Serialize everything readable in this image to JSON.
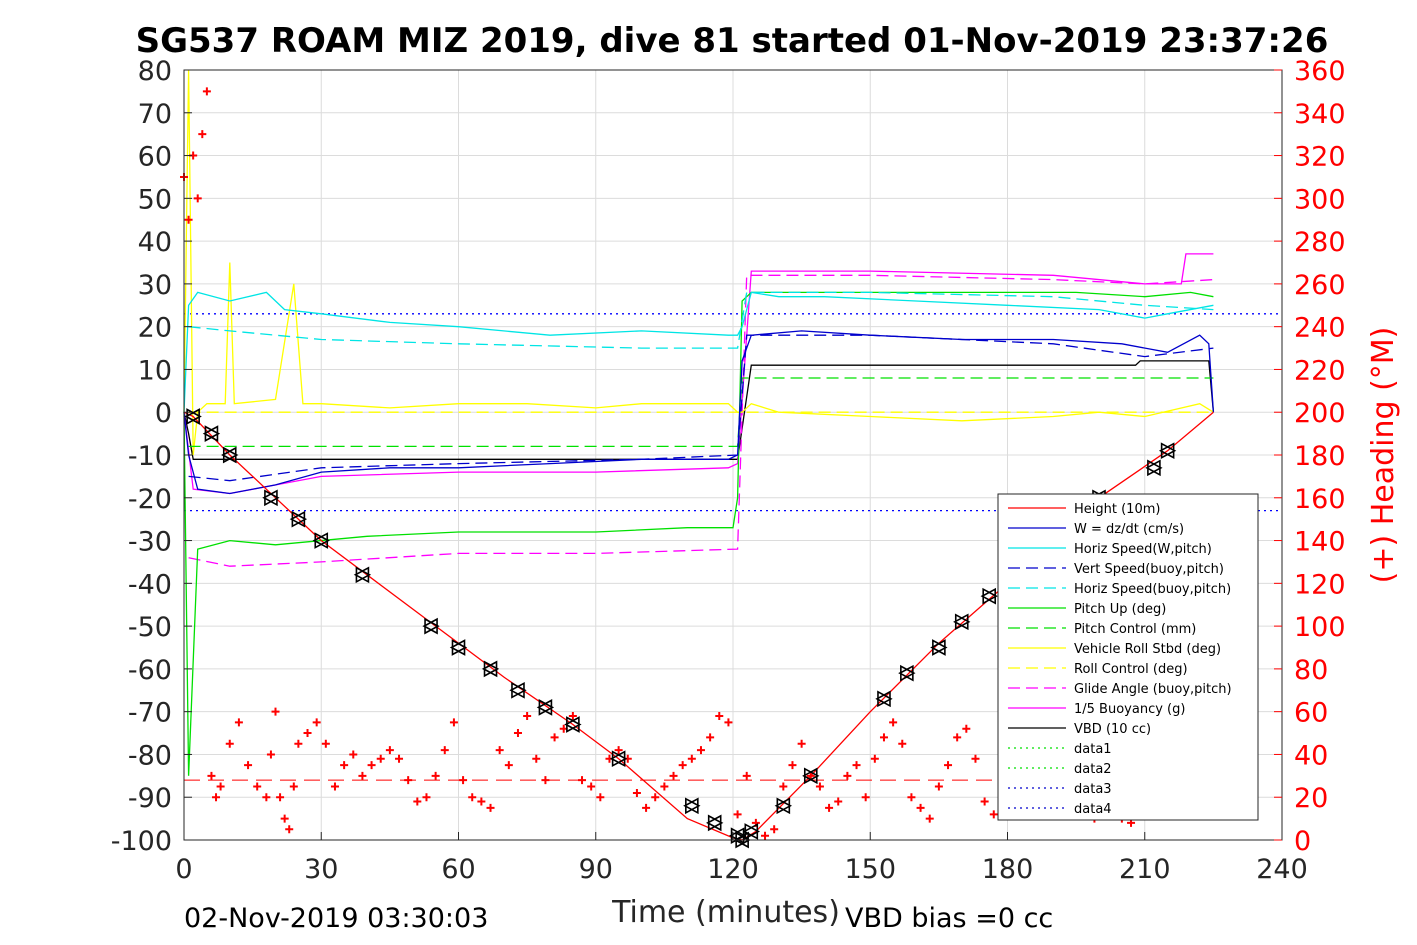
{
  "chart_data": {
    "type": "line",
    "title": "SG537 ROAM MIZ 2019, dive 81 started 01-Nov-2019 23:37:26",
    "xlabel": "Time (minutes)",
    "ylabel_right": "(+) Heading (°M)",
    "xlim": [
      0,
      240
    ],
    "ylim_left": [
      -100,
      80
    ],
    "ylim_right": [
      0,
      360
    ],
    "x_ticks": [
      "0",
      "30",
      "60",
      "90",
      "120",
      "150",
      "180",
      "210",
      "240"
    ],
    "y_ticks_left": [
      "80",
      "70",
      "60",
      "50",
      "40",
      "30",
      "20",
      "10",
      "0",
      "-10",
      "-20",
      "-30",
      "-40",
      "-50",
      "-60",
      "-70",
      "-80",
      "-90",
      "-100"
    ],
    "y_ticks_right": [
      "360",
      "340",
      "320",
      "300",
      "280",
      "260",
      "240",
      "220",
      "200",
      "180",
      "160",
      "140",
      "120",
      "100",
      "80",
      "60",
      "40",
      "20",
      "0"
    ],
    "grid": true,
    "legend_position": "bottom-right",
    "footer_left": "02-Nov-2019 03:30:03",
    "footer_right": "VBD bias =0 cc",
    "colors": {
      "height": "#ff0000",
      "w": "#0000cc",
      "horiz_w": "#00e5e5",
      "vert_buoy": "#0000cc",
      "horiz_buoy": "#00e5e5",
      "pitch": "#00e000",
      "pitch_ctrl": "#00e000",
      "roll": "#ffff00",
      "roll_ctrl": "#ffff00",
      "glide": "#ff00ff",
      "buoyancy": "#ff00ff",
      "vbd": "#000000",
      "heading": "#ff0000"
    },
    "series": [
      {
        "name": "Height (10m)",
        "key": "height",
        "style": "solid",
        "x": [
          0,
          2,
          10,
          20,
          30,
          40,
          55,
          70,
          85,
          95,
          110,
          120,
          122,
          125,
          137,
          150,
          165,
          180,
          200,
          215,
          225
        ],
        "y": [
          0,
          -1,
          -10,
          -20,
          -30,
          -38,
          -50,
          -62,
          -73,
          -81,
          -95,
          -99.5,
          -100,
          -98,
          -85,
          -70,
          -54,
          -40,
          -20,
          -9,
          0
        ]
      },
      {
        "name": "W = dz/dt (cm/s)",
        "key": "w",
        "style": "solid",
        "x": [
          0,
          1,
          3,
          10,
          20,
          30,
          45,
          60,
          80,
          100,
          119,
          121,
          122,
          124,
          135,
          150,
          170,
          190,
          205,
          215,
          222,
          224,
          225
        ],
        "y": [
          0,
          -10,
          -18,
          -19,
          -17,
          -14,
          -13,
          -13,
          -12,
          -11,
          -11,
          -10,
          12,
          18,
          19,
          18,
          17,
          17,
          16,
          14,
          18,
          16,
          0
        ]
      },
      {
        "name": "Horiz Speed(W,pitch)",
        "key": "horiz_w",
        "style": "solid",
        "x": [
          0,
          1,
          3,
          10,
          18,
          22,
          30,
          45,
          60,
          80,
          100,
          119,
          121,
          122,
          124,
          130,
          140,
          160,
          180,
          200,
          210,
          215,
          225
        ],
        "y": [
          0,
          25,
          28,
          26,
          28,
          24,
          23,
          21,
          20,
          18,
          19,
          18,
          18,
          20,
          28,
          27,
          27,
          26,
          25,
          24,
          22,
          23,
          25
        ]
      },
      {
        "name": "Vert Speed(buoy,pitch)",
        "key": "vert_buoy",
        "style": "dashed",
        "x": [
          1,
          10,
          30,
          60,
          100,
          121,
          123,
          150,
          190,
          210,
          225
        ],
        "y": [
          -15,
          -16,
          -13,
          -12,
          -11,
          -10,
          18,
          18,
          16,
          13,
          15
        ]
      },
      {
        "name": "Horiz Speed(buoy,pitch)",
        "key": "horiz_buoy",
        "style": "dashed",
        "x": [
          1,
          10,
          30,
          60,
          100,
          121,
          123,
          150,
          190,
          210,
          225
        ],
        "y": [
          20,
          19,
          17,
          16,
          15,
          15,
          28,
          28,
          27,
          25,
          24
        ]
      },
      {
        "name": "Pitch Up (deg)",
        "key": "pitch",
        "style": "solid",
        "x": [
          0,
          1,
          3,
          10,
          20,
          40,
          60,
          90,
          110,
          120,
          121,
          122,
          124,
          140,
          170,
          195,
          210,
          220,
          225
        ],
        "y": [
          0,
          -85,
          -32,
          -30,
          -31,
          -29,
          -28,
          -28,
          -27,
          -27,
          -20,
          26,
          28,
          28,
          28,
          28,
          27,
          28,
          27
        ]
      },
      {
        "name": "Pitch Control (mm)",
        "key": "pitch_ctrl",
        "style": "dashed",
        "x": [
          1,
          121,
          122,
          225
        ],
        "y": [
          -8,
          -8,
          8,
          8
        ]
      },
      {
        "name": "Vehicle Roll Stbd (deg)",
        "key": "roll",
        "style": "solid",
        "x": [
          0,
          1,
          2,
          3,
          5,
          9,
          10,
          11,
          20,
          24,
          26,
          30,
          45,
          60,
          75,
          90,
          100,
          115,
          119,
          121,
          122,
          124,
          130,
          150,
          170,
          190,
          200,
          210,
          222,
          225
        ],
        "y": [
          0,
          80,
          -10,
          0,
          2,
          2,
          35,
          2,
          3,
          30,
          2,
          2,
          1,
          2,
          2,
          1,
          2,
          2,
          2,
          0,
          0,
          2,
          0,
          -1,
          -2,
          -1,
          0,
          -1,
          2,
          0
        ]
      },
      {
        "name": "Roll Control (deg)",
        "key": "roll_ctrl",
        "style": "dashed",
        "x": [
          1,
          225
        ],
        "y": [
          0,
          0
        ]
      },
      {
        "name": "Glide Angle (buoy,pitch)",
        "key": "glide",
        "style": "dashed",
        "x": [
          1,
          10,
          30,
          60,
          90,
          121,
          123,
          150,
          190,
          210,
          225
        ],
        "y": [
          -34,
          -36,
          -35,
          -33,
          -33,
          -32,
          32,
          32,
          31,
          30,
          31
        ]
      },
      {
        "name": "1/5 Buoyancy (g)",
        "key": "buoyancy",
        "style": "solid",
        "x": [
          0,
          2,
          10,
          30,
          60,
          90,
          119,
          121,
          124,
          150,
          190,
          210,
          218,
          219,
          225
        ],
        "y": [
          0,
          -18,
          -19,
          -15,
          -14,
          -14,
          -13,
          -12,
          33,
          33,
          32,
          30,
          30,
          37,
          37
        ]
      },
      {
        "name": "VBD (10 cc)",
        "key": "vbd",
        "style": "solid",
        "x": [
          0,
          1,
          2,
          120,
          121,
          124,
          208,
          209,
          224,
          225
        ],
        "y": [
          0,
          -5,
          -11,
          -11,
          -11,
          11,
          11,
          12,
          12,
          0
        ]
      },
      {
        "name": "data1",
        "key": "data1",
        "style": "dotted",
        "x": [],
        "y": []
      },
      {
        "name": "data2",
        "key": "data2",
        "style": "dotted",
        "x": [],
        "y": []
      },
      {
        "name": "data3",
        "key": "data3",
        "style": "dotted",
        "x": [
          0,
          240
        ],
        "y": [
          23,
          23
        ]
      },
      {
        "name": "data4",
        "key": "data4",
        "style": "dotted",
        "x": [
          0,
          240
        ],
        "y": [
          -23,
          -23
        ]
      }
    ],
    "height_markers": {
      "x": [
        2,
        6,
        10,
        19,
        25,
        30,
        39,
        54,
        60,
        67,
        73,
        79,
        85,
        95,
        111,
        116,
        121,
        122,
        124,
        131,
        137,
        153,
        158,
        165,
        170,
        176,
        200,
        212,
        215
      ],
      "y": [
        -1,
        -5,
        -10,
        -20,
        -25,
        -30,
        -38,
        -50,
        -55,
        -60,
        -65,
        -69,
        -73,
        -81,
        -92,
        -96,
        -99,
        -100,
        -98,
        -92,
        -85,
        -67,
        -61,
        -55,
        -49,
        -43,
        -20,
        -13,
        -9
      ]
    },
    "heading": {
      "name": "Heading",
      "x": [
        0,
        1,
        2,
        3,
        4,
        5,
        6,
        7,
        8,
        10,
        12,
        14,
        16,
        18,
        19,
        20,
        21,
        22,
        23,
        24,
        25,
        27,
        29,
        31,
        33,
        35,
        37,
        39,
        41,
        43,
        45,
        47,
        49,
        51,
        53,
        55,
        57,
        59,
        61,
        63,
        65,
        67,
        69,
        71,
        73,
        75,
        77,
        79,
        81,
        83,
        85,
        87,
        89,
        91,
        93,
        95,
        97,
        99,
        101,
        103,
        105,
        107,
        109,
        111,
        113,
        115,
        117,
        119,
        121,
        123,
        125,
        127,
        129,
        131,
        133,
        135,
        137,
        139,
        141,
        143,
        145,
        147,
        149,
        151,
        153,
        155,
        157,
        159,
        161,
        163,
        165,
        167,
        169,
        171,
        173,
        175,
        177,
        179,
        181,
        183,
        185,
        187,
        189,
        191,
        193,
        195,
        197,
        199,
        201,
        203,
        205,
        207,
        209,
        211,
        213,
        215
      ],
      "y": [
        310,
        290,
        320,
        300,
        330,
        350,
        30,
        20,
        25,
        45,
        55,
        35,
        25,
        20,
        40,
        60,
        20,
        10,
        5,
        25,
        45,
        50,
        55,
        45,
        25,
        35,
        40,
        30,
        35,
        38,
        42,
        38,
        28,
        18,
        20,
        30,
        42,
        55,
        28,
        20,
        18,
        15,
        42,
        35,
        50,
        58,
        38,
        28,
        48,
        52,
        58,
        28,
        25,
        20,
        38,
        42,
        38,
        22,
        15,
        20,
        25,
        30,
        35,
        38,
        42,
        48,
        58,
        55,
        12,
        30,
        8,
        2,
        5,
        25,
        35,
        45,
        30,
        25,
        15,
        18,
        30,
        35,
        20,
        38,
        48,
        55,
        45,
        20,
        15,
        10,
        25,
        35,
        48,
        52,
        38,
        18,
        12,
        22,
        40,
        42,
        30,
        18,
        12,
        20,
        35,
        25,
        18,
        10,
        22,
        20,
        10,
        8,
        12,
        15,
        18,
        20
      ]
    },
    "heading_ref": {
      "x": [
        0,
        225
      ],
      "y": [
        28,
        28
      ]
    }
  }
}
